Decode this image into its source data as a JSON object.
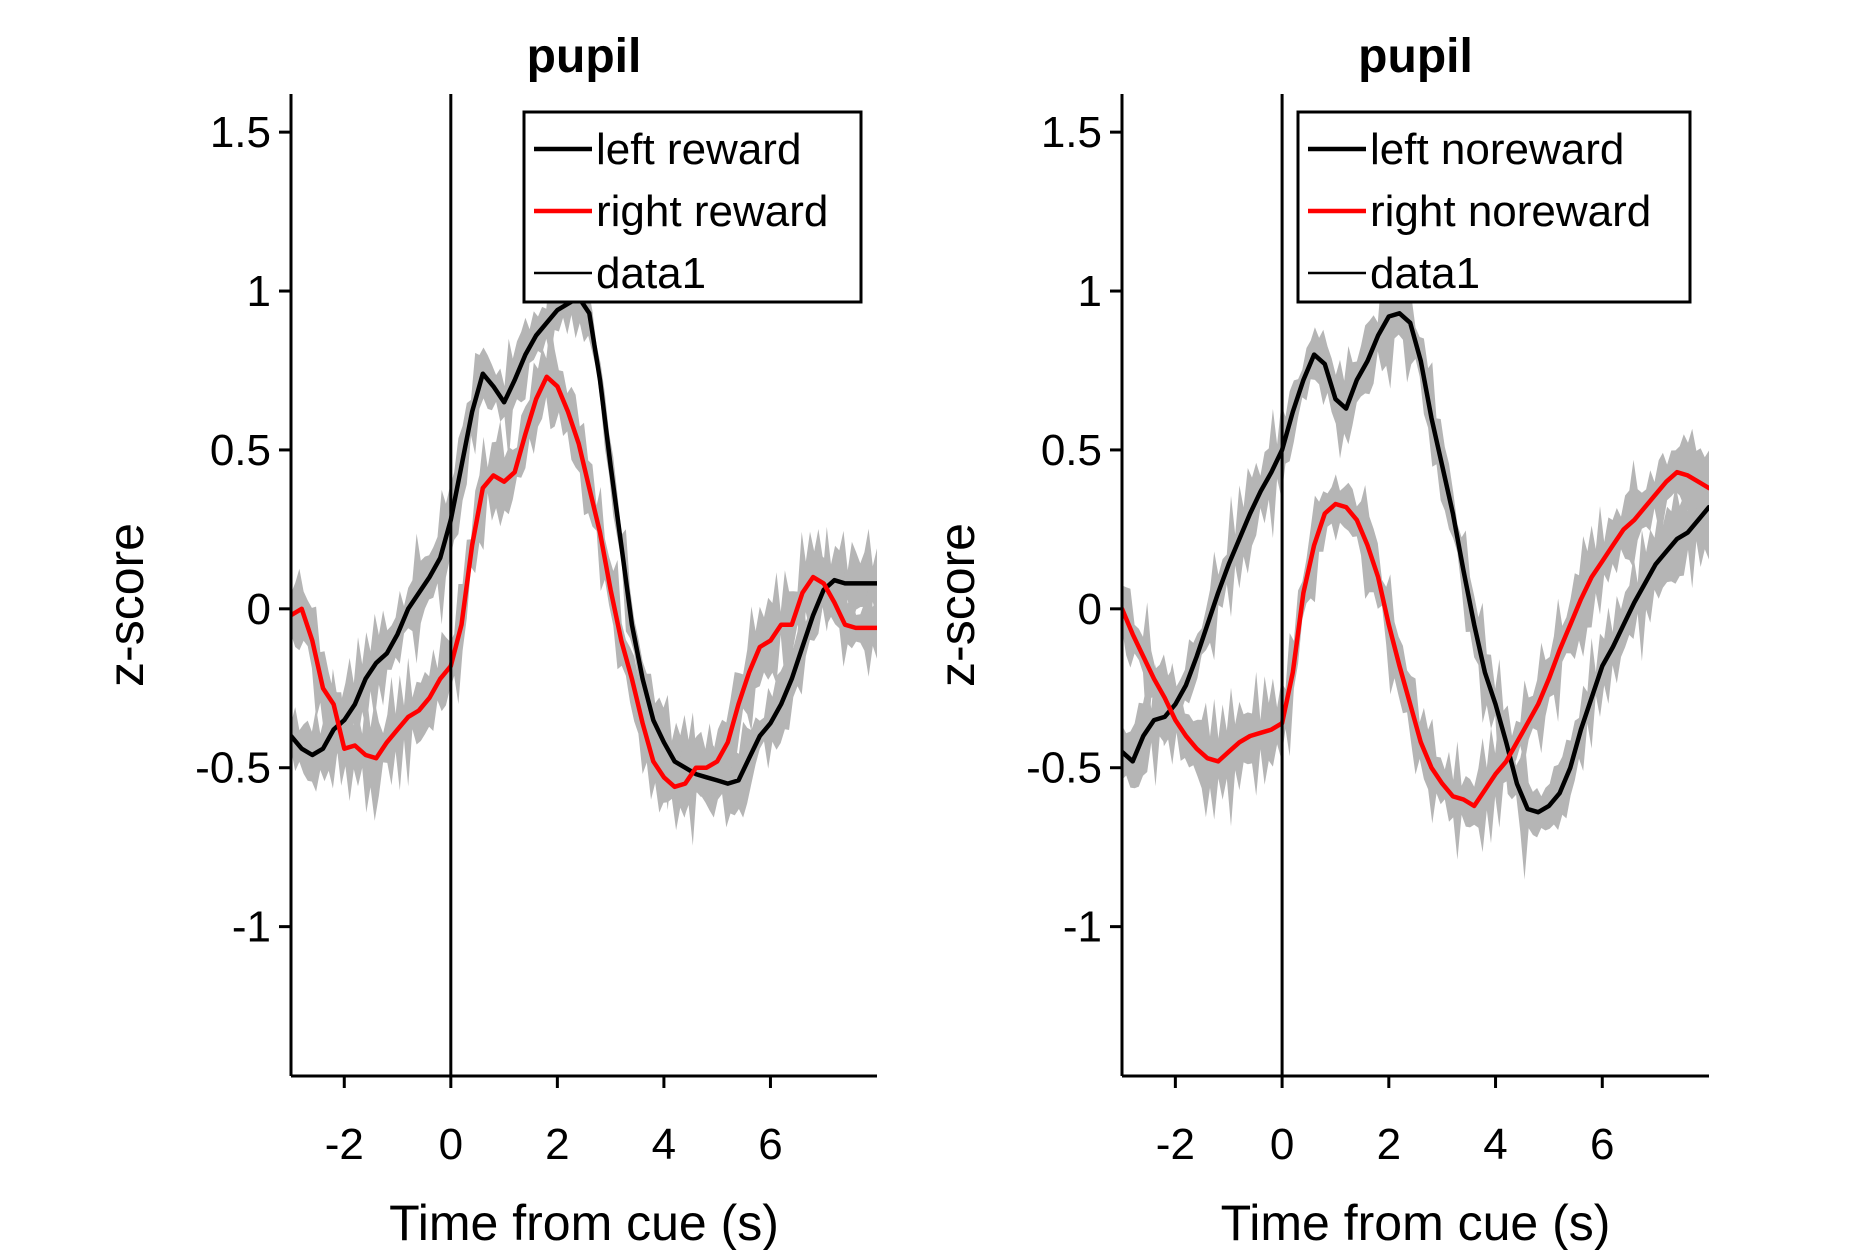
{
  "chart_data": [
    {
      "type": "line",
      "title": "pupil",
      "xlabel": "Time from cue (s)",
      "ylabel": "z-score",
      "xlim": [
        -3,
        8
      ],
      "ylim": [
        -1.47,
        1.62
      ],
      "xticks": [
        -2,
        0,
        2,
        4,
        6
      ],
      "xtick_labels": [
        "-2",
        "0",
        "2",
        "4",
        "6"
      ],
      "yticks": [
        1.5,
        1,
        0.5,
        0,
        -0.5,
        -1
      ],
      "ytick_labels": [
        "1.5",
        "1",
        "0.5",
        "0",
        "-0.5",
        "-1"
      ],
      "cue_line_x": 0,
      "legend_position": "top-right",
      "legend": [
        "left reward",
        "right reward",
        "data1"
      ],
      "grid": false,
      "series": [
        {
          "name": "left reward",
          "color": "#000000",
          "x": [
            -3,
            -2.8,
            -2.6,
            -2.4,
            -2.2,
            -2,
            -1.8,
            -1.6,
            -1.4,
            -1.2,
            -1,
            -0.8,
            -0.6,
            -0.4,
            -0.2,
            0,
            0.2,
            0.4,
            0.6,
            0.8,
            1,
            1.2,
            1.4,
            1.6,
            1.8,
            2,
            2.2,
            2.4,
            2.6,
            2.8,
            3,
            3.2,
            3.4,
            3.6,
            3.8,
            4,
            4.2,
            4.4,
            4.6,
            4.8,
            5,
            5.2,
            5.4,
            5.6,
            5.8,
            6,
            6.2,
            6.4,
            6.6,
            6.8,
            7,
            7.2,
            7.4,
            7.6,
            7.8,
            8
          ],
          "y": [
            -0.4,
            -0.44,
            -0.46,
            -0.44,
            -0.38,
            -0.35,
            -0.3,
            -0.22,
            -0.17,
            -0.14,
            -0.08,
            0.0,
            0.05,
            0.1,
            0.16,
            0.28,
            0.45,
            0.62,
            0.74,
            0.7,
            0.65,
            0.72,
            0.8,
            0.86,
            0.9,
            0.94,
            0.96,
            0.98,
            0.93,
            0.72,
            0.45,
            0.2,
            -0.05,
            -0.22,
            -0.35,
            -0.42,
            -0.48,
            -0.5,
            -0.52,
            -0.53,
            -0.54,
            -0.55,
            -0.54,
            -0.47,
            -0.4,
            -0.36,
            -0.3,
            -0.22,
            -0.12,
            -0.02,
            0.06,
            0.09,
            0.08,
            0.08,
            0.08,
            0.08
          ]
        },
        {
          "name": "right reward",
          "color": "#ff0000",
          "x": [
            -3,
            -2.8,
            -2.6,
            -2.4,
            -2.2,
            -2,
            -1.8,
            -1.6,
            -1.4,
            -1.2,
            -1,
            -0.8,
            -0.6,
            -0.4,
            -0.2,
            0,
            0.2,
            0.4,
            0.6,
            0.8,
            1,
            1.2,
            1.4,
            1.6,
            1.8,
            2,
            2.2,
            2.4,
            2.6,
            2.8,
            3,
            3.2,
            3.4,
            3.6,
            3.8,
            4,
            4.2,
            4.4,
            4.6,
            4.8,
            5,
            5.2,
            5.4,
            5.6,
            5.8,
            6,
            6.2,
            6.4,
            6.6,
            6.8,
            7,
            7.2,
            7.4,
            7.6,
            7.8,
            8
          ],
          "y": [
            -0.02,
            0.0,
            -0.1,
            -0.25,
            -0.3,
            -0.44,
            -0.43,
            -0.46,
            -0.47,
            -0.42,
            -0.38,
            -0.34,
            -0.32,
            -0.28,
            -0.22,
            -0.18,
            -0.05,
            0.2,
            0.38,
            0.42,
            0.4,
            0.43,
            0.55,
            0.66,
            0.73,
            0.7,
            0.62,
            0.52,
            0.38,
            0.24,
            0.06,
            -0.1,
            -0.22,
            -0.36,
            -0.48,
            -0.53,
            -0.56,
            -0.55,
            -0.5,
            -0.5,
            -0.48,
            -0.42,
            -0.3,
            -0.2,
            -0.12,
            -0.1,
            -0.05,
            -0.05,
            0.05,
            0.1,
            0.08,
            0.02,
            -0.05,
            -0.06,
            -0.06,
            -0.06
          ]
        }
      ]
    },
    {
      "type": "line",
      "title": "pupil",
      "xlabel": "Time from cue (s)",
      "ylabel": "z-score",
      "xlim": [
        -3,
        8
      ],
      "ylim": [
        -1.47,
        1.62
      ],
      "xticks": [
        -2,
        0,
        2,
        4,
        6
      ],
      "xtick_labels": [
        "-2",
        "0",
        "2",
        "4",
        "6"
      ],
      "yticks": [
        1.5,
        1,
        0.5,
        0,
        -0.5,
        -1
      ],
      "ytick_labels": [
        "1.5",
        "1",
        "0.5",
        "0",
        "-0.5",
        "-1"
      ],
      "cue_line_x": 0,
      "legend_position": "top-right",
      "legend": [
        "left noreward",
        "right noreward",
        "data1"
      ],
      "grid": false,
      "series": [
        {
          "name": "left noreward",
          "color": "#000000",
          "x": [
            -3,
            -2.8,
            -2.6,
            -2.4,
            -2.2,
            -2,
            -1.8,
            -1.6,
            -1.4,
            -1.2,
            -1,
            -0.8,
            -0.6,
            -0.4,
            -0.2,
            0,
            0.2,
            0.4,
            0.6,
            0.8,
            1,
            1.2,
            1.4,
            1.6,
            1.8,
            2,
            2.2,
            2.4,
            2.6,
            2.8,
            3,
            3.2,
            3.4,
            3.6,
            3.8,
            4,
            4.2,
            4.4,
            4.6,
            4.8,
            5,
            5.2,
            5.4,
            5.6,
            5.8,
            6,
            6.2,
            6.4,
            6.6,
            6.8,
            7,
            7.2,
            7.4,
            7.6,
            7.8,
            8
          ],
          "y": [
            -0.45,
            -0.48,
            -0.4,
            -0.35,
            -0.34,
            -0.3,
            -0.24,
            -0.15,
            -0.05,
            0.05,
            0.14,
            0.22,
            0.3,
            0.37,
            0.43,
            0.5,
            0.62,
            0.72,
            0.8,
            0.77,
            0.66,
            0.63,
            0.72,
            0.78,
            0.86,
            0.92,
            0.93,
            0.9,
            0.78,
            0.6,
            0.45,
            0.3,
            0.12,
            -0.05,
            -0.2,
            -0.3,
            -0.42,
            -0.55,
            -0.63,
            -0.64,
            -0.62,
            -0.58,
            -0.5,
            -0.38,
            -0.28,
            -0.18,
            -0.12,
            -0.05,
            0.02,
            0.08,
            0.14,
            0.18,
            0.22,
            0.24,
            0.28,
            0.32
          ]
        },
        {
          "name": "right noreward",
          "color": "#ff0000",
          "x": [
            -3,
            -2.8,
            -2.6,
            -2.4,
            -2.2,
            -2,
            -1.8,
            -1.6,
            -1.4,
            -1.2,
            -1,
            -0.8,
            -0.6,
            -0.4,
            -0.2,
            0,
            0.2,
            0.4,
            0.6,
            0.8,
            1,
            1.2,
            1.4,
            1.6,
            1.8,
            2,
            2.2,
            2.4,
            2.6,
            2.8,
            3,
            3.2,
            3.4,
            3.6,
            3.8,
            4,
            4.2,
            4.4,
            4.6,
            4.8,
            5,
            5.2,
            5.4,
            5.6,
            5.8,
            6,
            6.2,
            6.4,
            6.6,
            6.8,
            7,
            7.2,
            7.4,
            7.6,
            7.8,
            8
          ],
          "y": [
            0.0,
            -0.08,
            -0.15,
            -0.22,
            -0.28,
            -0.35,
            -0.4,
            -0.44,
            -0.47,
            -0.48,
            -0.45,
            -0.42,
            -0.4,
            -0.39,
            -0.38,
            -0.36,
            -0.2,
            0.05,
            0.2,
            0.3,
            0.33,
            0.32,
            0.28,
            0.2,
            0.1,
            -0.05,
            -0.18,
            -0.3,
            -0.42,
            -0.5,
            -0.55,
            -0.59,
            -0.6,
            -0.62,
            -0.57,
            -0.52,
            -0.48,
            -0.42,
            -0.36,
            -0.3,
            -0.22,
            -0.13,
            -0.05,
            0.03,
            0.1,
            0.15,
            0.2,
            0.25,
            0.28,
            0.32,
            0.36,
            0.4,
            0.43,
            0.42,
            0.4,
            0.38
          ]
        }
      ]
    }
  ]
}
